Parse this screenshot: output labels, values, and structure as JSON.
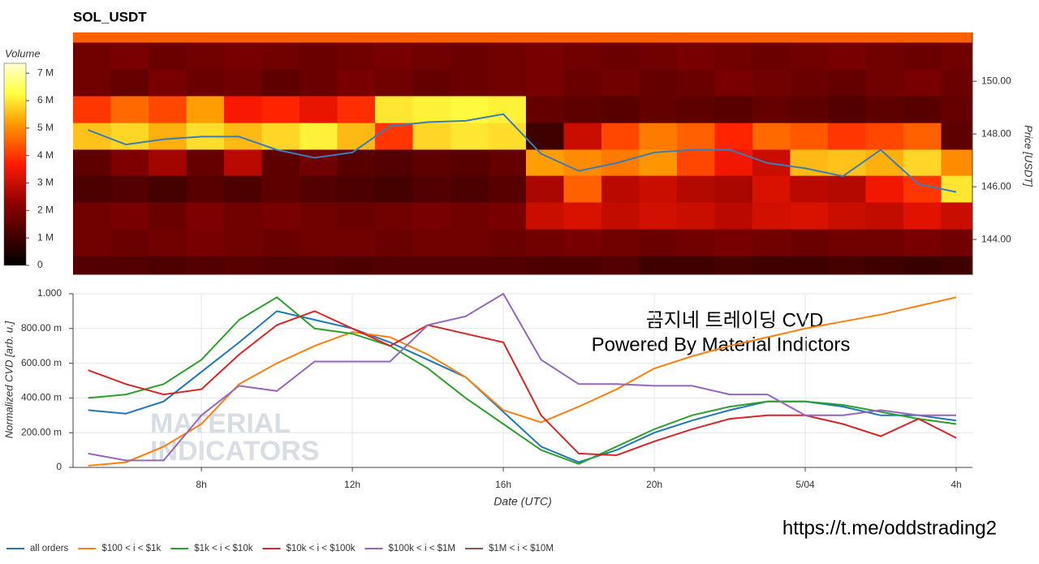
{
  "chart_data": [
    {
      "type": "heatmap",
      "title": "SOL_USDT",
      "y_label": "Price [USDT]",
      "colorbar_title": "Volume",
      "zlim": [
        0,
        7.36
      ],
      "zticks": [
        0,
        {
          "value": 1,
          "label": "1 M"
        },
        {
          "value": 2,
          "label": "2 M"
        },
        {
          "value": 3,
          "label": "3 M"
        },
        {
          "value": 4,
          "label": "4 M"
        },
        {
          "value": 5,
          "label": "5 M"
        },
        {
          "value": 6,
          "label": "6 M"
        },
        {
          "value": 7,
          "label": "7 M"
        }
      ],
      "xlim": [
        4.6,
        28.43
      ],
      "ylim": [
        142.68,
        151.85
      ],
      "yticks": [
        {
          "value": 144,
          "label": "144.00"
        },
        {
          "value": 146,
          "label": "146.00"
        },
        {
          "value": 148,
          "label": "148.00"
        },
        {
          "value": 150,
          "label": "150.00"
        }
      ],
      "x_bins": [
        4.6,
        5.6,
        6.6,
        7.6,
        8.6,
        9.6,
        10.6,
        11.6,
        12.6,
        13.6,
        14.6,
        15.6,
        16.6,
        17.6,
        18.6,
        19.6,
        20.6,
        21.6,
        22.6,
        23.6,
        24.6,
        25.6,
        26.6,
        27.6,
        28.43
      ],
      "y_bins": [
        142.68,
        143.38,
        144.4,
        145.42,
        146.43,
        147.42,
        148.43,
        149.45,
        150.46,
        151.48,
        151.85
      ],
      "z": [
        [
          1.3,
          1.3,
          1.2,
          1.3,
          1.4,
          1.3,
          1.3,
          1.2,
          1.3,
          1.3,
          1.3,
          1.3,
          1.2,
          1.2,
          1.3,
          1.0,
          1.0,
          1.1,
          1.0,
          1.0,
          1.1,
          1.0,
          0.9,
          1.0
        ],
        [
          1.8,
          1.7,
          1.8,
          1.9,
          1.8,
          1.7,
          1.8,
          1.8,
          1.7,
          1.8,
          1.8,
          1.7,
          1.8,
          1.9,
          1.8,
          1.7,
          1.8,
          1.9,
          1.8,
          1.7,
          1.8,
          1.8,
          1.9,
          1.8
        ],
        [
          1.8,
          1.9,
          1.7,
          2.0,
          1.8,
          1.9,
          1.8,
          1.7,
          1.8,
          1.9,
          1.8,
          1.9,
          3.0,
          3.2,
          2.9,
          3.1,
          3.0,
          2.8,
          3.1,
          3.2,
          3.0,
          2.9,
          3.3,
          3.0
        ],
        [
          1.2,
          1.3,
          1.1,
          1.4,
          1.2,
          1.5,
          1.3,
          1.2,
          1.1,
          1.3,
          1.2,
          1.4,
          2.6,
          4.5,
          2.8,
          3.0,
          2.7,
          2.6,
          3.2,
          2.8,
          2.7,
          3.5,
          4.0,
          6.0
        ],
        [
          1.5,
          2.0,
          2.5,
          1.6,
          2.8,
          1.5,
          1.8,
          1.4,
          1.3,
          1.5,
          1.4,
          1.6,
          5.2,
          5.0,
          4.8,
          5.1,
          4.2,
          3.5,
          3.0,
          5.5,
          5.6,
          5.4,
          5.8,
          5.0
        ],
        [
          5.6,
          5.8,
          5.4,
          5.9,
          5.5,
          5.8,
          6.1,
          5.5,
          4.0,
          5.8,
          6.0,
          5.9,
          1.0,
          3.0,
          4.2,
          4.8,
          4.5,
          3.8,
          4.6,
          4.4,
          4.0,
          4.2,
          4.5,
          1.5
        ],
        [
          4.0,
          4.6,
          4.2,
          5.2,
          3.6,
          3.8,
          3.4,
          3.9,
          6.0,
          6.1,
          6.2,
          6.1,
          1.6,
          1.5,
          1.4,
          1.6,
          1.5,
          1.4,
          1.6,
          1.5,
          1.3,
          1.5,
          1.4,
          1.6
        ],
        [
          1.8,
          1.6,
          1.9,
          1.7,
          1.8,
          1.5,
          1.7,
          1.9,
          1.8,
          1.6,
          1.7,
          1.8,
          1.9,
          1.7,
          1.8,
          1.6,
          1.7,
          1.9,
          1.8,
          1.7,
          1.6,
          1.8,
          1.9,
          1.7
        ],
        [
          1.8,
          1.9,
          1.7,
          1.8,
          1.9,
          1.8,
          1.7,
          1.8,
          1.9,
          1.8,
          1.7,
          1.8,
          1.9,
          1.8,
          1.7,
          1.8,
          1.9,
          1.8,
          1.7,
          1.8,
          1.9,
          1.8,
          1.7,
          1.8
        ],
        [
          4.5,
          4.5,
          4.5,
          4.5,
          4.5,
          4.5,
          4.5,
          4.5,
          4.5,
          4.5,
          4.5,
          4.5,
          4.5,
          4.5,
          4.5,
          4.5,
          4.5,
          4.5,
          4.5,
          4.5,
          4.5,
          4.5,
          4.5,
          4.5
        ]
      ],
      "x": [
        5,
        6,
        7,
        8,
        9,
        10,
        11,
        12,
        13,
        14,
        15,
        16,
        17,
        18,
        19,
        20,
        21,
        22,
        23,
        24,
        25,
        26,
        27,
        28
      ],
      "price": {
        "color": "#3b7db5",
        "values": [
          148.15,
          147.6,
          147.8,
          147.9,
          147.9,
          147.4,
          147.1,
          147.3,
          148.3,
          148.45,
          148.5,
          148.75,
          147.25,
          146.6,
          146.9,
          147.3,
          147.4,
          147.4,
          146.9,
          146.7,
          146.4,
          147.4,
          146.1,
          145.8
        ]
      }
    },
    {
      "type": "line",
      "x_label": "Date (UTC)",
      "y_label": "Normalized CVD [arb. u.]",
      "xlim": [
        4.6,
        28.43
      ],
      "ylim": [
        0,
        1
      ],
      "xticks": [
        {
          "value": 8,
          "label": "8h"
        },
        {
          "value": 12,
          "label": "12h"
        },
        {
          "value": 16,
          "label": "16h"
        },
        {
          "value": 20,
          "label": "20h"
        },
        {
          "value": 24,
          "label": "5/04"
        },
        {
          "value": 28,
          "label": "4h"
        }
      ],
      "yticks": [
        0,
        {
          "value": 0.2,
          "label": "200.00 m"
        },
        {
          "value": 0.4,
          "label": "400.00 m"
        },
        {
          "value": 0.6,
          "label": "600.00 m"
        },
        {
          "value": 0.8,
          "label": "800.00 m"
        },
        {
          "value": 1,
          "label": "1.000"
        }
      ],
      "grid": true,
      "x": [
        5,
        6,
        7,
        8,
        9,
        10,
        11,
        12,
        13,
        14,
        15,
        16,
        17,
        18,
        19,
        20,
        21,
        22,
        23,
        24,
        25,
        26,
        27,
        28
      ],
      "series": [
        {
          "name": "all orders",
          "color": "#1f77b4",
          "values": [
            0.33,
            0.31,
            0.38,
            0.55,
            0.72,
            0.9,
            0.85,
            0.8,
            0.72,
            0.62,
            0.52,
            0.32,
            0.12,
            0.03,
            0.1,
            0.2,
            0.27,
            0.33,
            0.38,
            0.38,
            0.35,
            0.3,
            0.3,
            0.27
          ]
        },
        {
          "name": "$100 < i < $1k",
          "color": "#ff7f0e",
          "values": [
            0.01,
            0.03,
            0.12,
            0.25,
            0.48,
            0.6,
            0.7,
            0.78,
            0.75,
            0.65,
            0.52,
            0.33,
            0.26,
            0.35,
            0.45,
            0.57,
            0.64,
            0.7,
            0.75,
            0.8,
            0.84,
            0.88,
            0.93,
            0.98
          ]
        },
        {
          "name": "$1k < i < $10k",
          "color": "#2ca02c",
          "values": [
            0.4,
            0.42,
            0.48,
            0.62,
            0.85,
            0.98,
            0.8,
            0.77,
            0.7,
            0.57,
            0.4,
            0.25,
            0.1,
            0.02,
            0.12,
            0.22,
            0.3,
            0.35,
            0.38,
            0.38,
            0.36,
            0.32,
            0.28,
            0.25
          ]
        },
        {
          "name": "$10k < i < $100k",
          "color": "#d62728",
          "values": [
            0.56,
            0.48,
            0.42,
            0.45,
            0.65,
            0.82,
            0.9,
            0.8,
            0.7,
            0.82,
            0.77,
            0.72,
            0.3,
            0.08,
            0.07,
            0.15,
            0.22,
            0.28,
            0.3,
            0.3,
            0.25,
            0.18,
            0.28,
            0.17
          ]
        },
        {
          "name": "$100k < i < $1M",
          "color": "#9467bd",
          "values": [
            0.08,
            0.04,
            0.04,
            0.3,
            0.47,
            0.44,
            0.61,
            0.61,
            0.61,
            0.82,
            0.87,
            1.0,
            0.62,
            0.48,
            0.48,
            0.47,
            0.47,
            0.42,
            0.42,
            0.3,
            0.3,
            0.33,
            0.3,
            0.3
          ]
        },
        {
          "name": "$1M < i < $10M",
          "color": "#8c564b",
          "values": [
            null,
            null,
            null,
            null,
            null,
            null,
            null,
            null,
            null,
            null,
            null,
            null,
            null,
            null,
            null,
            null,
            null,
            null,
            null,
            null,
            null,
            null,
            null,
            null
          ]
        }
      ],
      "annotations": [
        "곰지네 트레이딩 CVD",
        "Powered By Material Indictors"
      ],
      "watermark": [
        "MATERIAL",
        "INDICATORS"
      ]
    }
  ],
  "footer_link": "https://t.me/oddstrading2"
}
